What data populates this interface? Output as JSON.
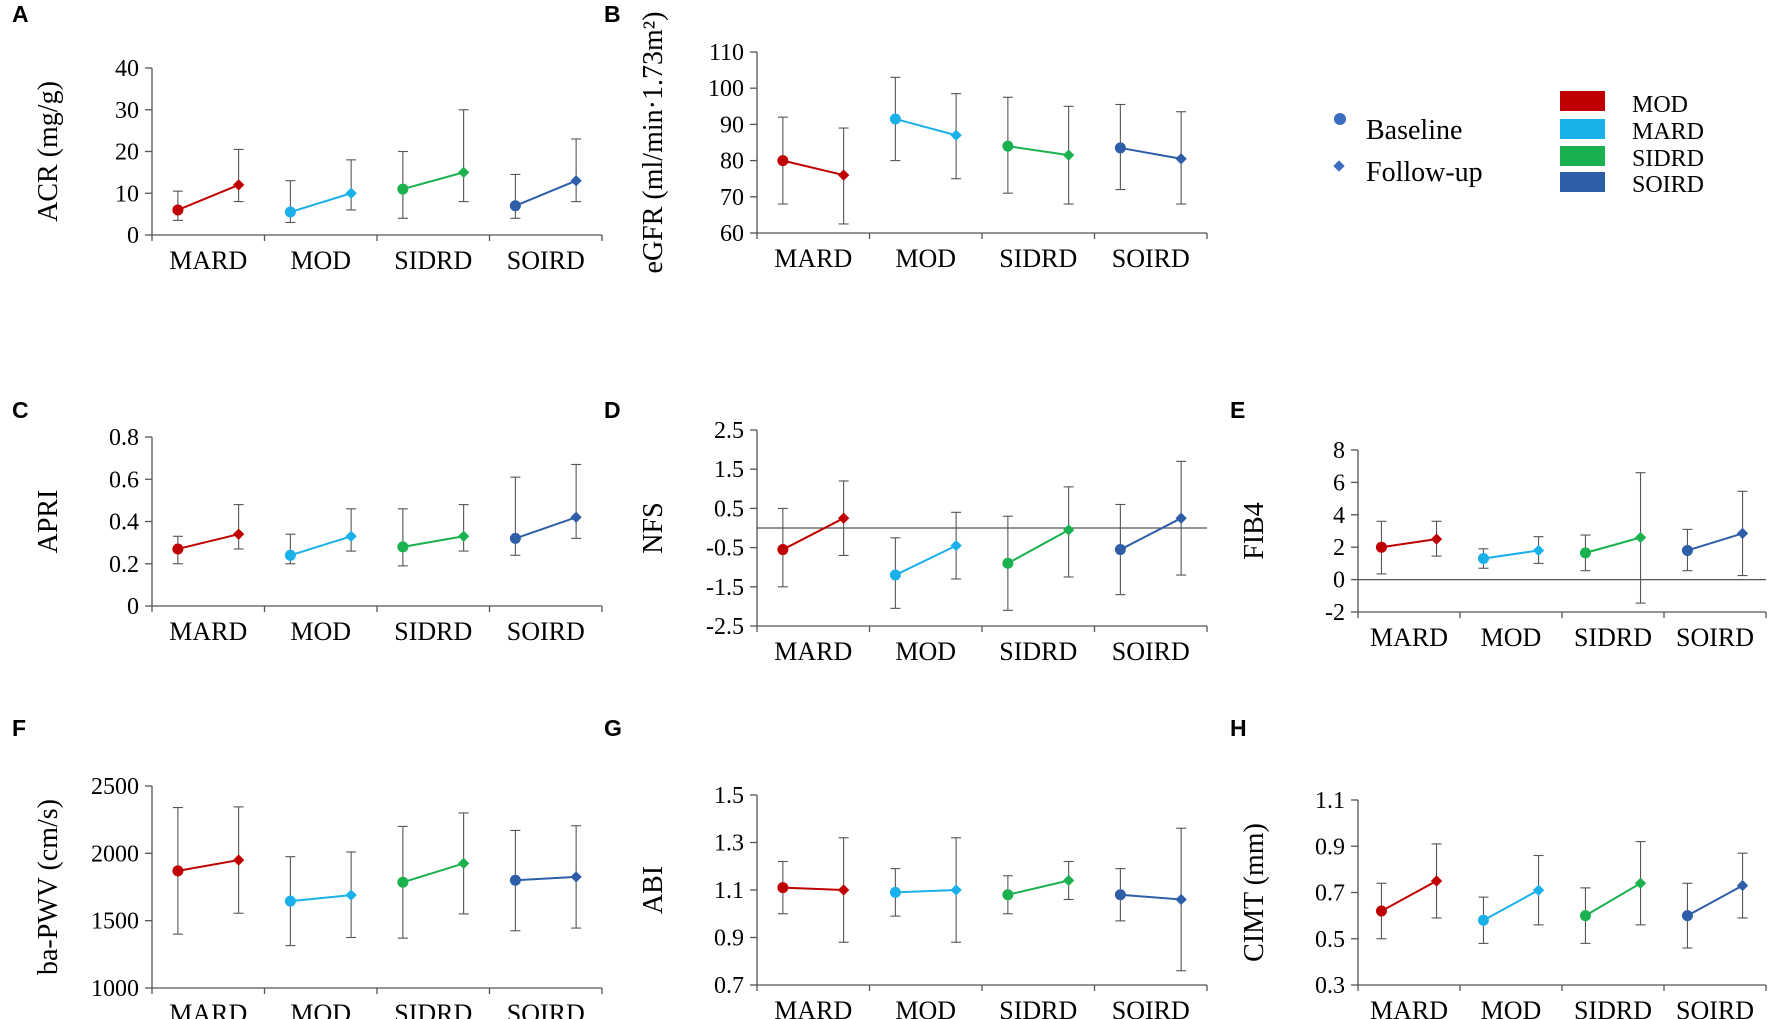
{
  "legend": {
    "markers": [
      {
        "label": "Baseline",
        "shape": "circle",
        "color": "#3a6cc0"
      },
      {
        "label": "Follow-up",
        "shape": "diamond",
        "color": "#3a6cc0"
      }
    ],
    "groups": [
      {
        "label": "MOD",
        "color": "#c00000"
      },
      {
        "label": "MARD",
        "color": "#1ab0ea"
      },
      {
        "label": "SIDRD",
        "color": "#1ab14e"
      },
      {
        "label": "SOIRD",
        "color": "#2e5ea8"
      }
    ]
  },
  "chart_data": [
    {
      "letter": "A",
      "type": "line",
      "ylabel": "ACR (mg/g)",
      "categories": [
        "MARD",
        "MOD",
        "SIDRD",
        "SOIRD"
      ],
      "colors": [
        "#c00000",
        "#1ab0ea",
        "#1ab14e",
        "#2e5ea8"
      ],
      "ylim": [
        0,
        40
      ],
      "yticks": [
        "0",
        "10",
        "20",
        "30",
        "40"
      ],
      "baseline_line": null,
      "baseline": [
        {
          "v": 6,
          "lo": 3.5,
          "hi": 10.5
        },
        {
          "v": 5.5,
          "lo": 3,
          "hi": 13
        },
        {
          "v": 11,
          "lo": 4,
          "hi": 20
        },
        {
          "v": 7,
          "lo": 4,
          "hi": 14.5
        }
      ],
      "followup": [
        {
          "v": 12,
          "lo": 8,
          "hi": 20.5
        },
        {
          "v": 10,
          "lo": 6,
          "hi": 18
        },
        {
          "v": 15,
          "lo": 8,
          "hi": 30
        },
        {
          "v": 13,
          "lo": 8,
          "hi": 23
        }
      ]
    },
    {
      "letter": "B",
      "type": "line",
      "ylabel": "eGFR (ml/min·1.73m²)",
      "categories": [
        "MARD",
        "MOD",
        "SIDRD",
        "SOIRD"
      ],
      "colors": [
        "#c00000",
        "#1ab0ea",
        "#1ab14e",
        "#2e5ea8"
      ],
      "ylim": [
        60,
        110
      ],
      "yticks": [
        "60",
        "70",
        "80",
        "90",
        "100",
        "110"
      ],
      "baseline_line": null,
      "baseline": [
        {
          "v": 80,
          "lo": 68,
          "hi": 92
        },
        {
          "v": 91.5,
          "lo": 80,
          "hi": 103
        },
        {
          "v": 84,
          "lo": 71,
          "hi": 97.5
        },
        {
          "v": 83.5,
          "lo": 72,
          "hi": 95.5
        }
      ],
      "followup": [
        {
          "v": 76,
          "lo": 62.5,
          "hi": 89
        },
        {
          "v": 87,
          "lo": 75,
          "hi": 98.5
        },
        {
          "v": 81.5,
          "lo": 68,
          "hi": 95
        },
        {
          "v": 80.5,
          "lo": 68,
          "hi": 93.5
        }
      ]
    },
    {
      "letter": "C",
      "type": "line",
      "ylabel": "APRI",
      "categories": [
        "MARD",
        "MOD",
        "SIDRD",
        "SOIRD"
      ],
      "colors": [
        "#c00000",
        "#1ab0ea",
        "#1ab14e",
        "#2e5ea8"
      ],
      "ylim": [
        0,
        0.8
      ],
      "yticks": [
        "0",
        "0.2",
        "0.4",
        "0.6",
        "0.8"
      ],
      "baseline_line": null,
      "baseline": [
        {
          "v": 0.27,
          "lo": 0.2,
          "hi": 0.33
        },
        {
          "v": 0.24,
          "lo": 0.2,
          "hi": 0.34
        },
        {
          "v": 0.28,
          "lo": 0.19,
          "hi": 0.46
        },
        {
          "v": 0.32,
          "lo": 0.24,
          "hi": 0.61
        }
      ],
      "followup": [
        {
          "v": 0.34,
          "lo": 0.27,
          "hi": 0.48
        },
        {
          "v": 0.33,
          "lo": 0.26,
          "hi": 0.46
        },
        {
          "v": 0.33,
          "lo": 0.26,
          "hi": 0.48
        },
        {
          "v": 0.42,
          "lo": 0.32,
          "hi": 0.67
        }
      ]
    },
    {
      "letter": "D",
      "type": "line",
      "ylabel": "NFS",
      "categories": [
        "MARD",
        "MOD",
        "SIDRD",
        "SOIRD"
      ],
      "colors": [
        "#c00000",
        "#1ab0ea",
        "#1ab14e",
        "#2e5ea8"
      ],
      "ylim": [
        -2.5,
        2.5
      ],
      "yticks": [
        "-2.5",
        "-1.5",
        "-0.5",
        "0.5",
        "1.5",
        "2.5"
      ],
      "baseline_line": 0,
      "baseline": [
        {
          "v": -0.55,
          "lo": -1.5,
          "hi": 0.5
        },
        {
          "v": -1.2,
          "lo": -2.05,
          "hi": -0.25
        },
        {
          "v": -0.9,
          "lo": -2.1,
          "hi": 0.3
        },
        {
          "v": -0.55,
          "lo": -1.7,
          "hi": 0.6
        }
      ],
      "followup": [
        {
          "v": 0.25,
          "lo": -0.7,
          "hi": 1.2
        },
        {
          "v": -0.45,
          "lo": -1.3,
          "hi": 0.4
        },
        {
          "v": -0.05,
          "lo": -1.25,
          "hi": 1.05
        },
        {
          "v": 0.25,
          "lo": -1.2,
          "hi": 1.7
        }
      ]
    },
    {
      "letter": "E",
      "type": "line",
      "ylabel": "FIB4",
      "categories": [
        "MARD",
        "MOD",
        "SIDRD",
        "SOIRD"
      ],
      "colors": [
        "#c00000",
        "#1ab0ea",
        "#1ab14e",
        "#2e5ea8"
      ],
      "ylim": [
        -2,
        8
      ],
      "yticks": [
        "-2",
        "0",
        "2",
        "4",
        "6",
        "8"
      ],
      "baseline_line": 0,
      "baseline": [
        {
          "v": 2.0,
          "lo": 0.35,
          "hi": 3.6
        },
        {
          "v": 1.3,
          "lo": 0.7,
          "hi": 1.9
        },
        {
          "v": 1.65,
          "lo": 0.55,
          "hi": 2.75
        },
        {
          "v": 1.8,
          "lo": 0.55,
          "hi": 3.1
        }
      ],
      "followup": [
        {
          "v": 2.5,
          "lo": 1.45,
          "hi": 3.6
        },
        {
          "v": 1.8,
          "lo": 1.0,
          "hi": 2.65
        },
        {
          "v": 2.6,
          "lo": -1.45,
          "hi": 6.6
        },
        {
          "v": 2.85,
          "lo": 0.25,
          "hi": 5.45
        }
      ]
    },
    {
      "letter": "F",
      "type": "line",
      "ylabel": "ba-PWV (cm/s)",
      "categories": [
        "MARD",
        "MOD",
        "SIDRD",
        "SOIRD"
      ],
      "colors": [
        "#c00000",
        "#1ab0ea",
        "#1ab14e",
        "#2e5ea8"
      ],
      "ylim": [
        1000,
        2500
      ],
      "yticks": [
        "1000",
        "1500",
        "2000",
        "2500"
      ],
      "baseline_line": null,
      "baseline": [
        {
          "v": 1870,
          "lo": 1400,
          "hi": 2340
        },
        {
          "v": 1645,
          "lo": 1315,
          "hi": 1975
        },
        {
          "v": 1785,
          "lo": 1370,
          "hi": 2200
        },
        {
          "v": 1800,
          "lo": 1425,
          "hi": 2170
        }
      ],
      "followup": [
        {
          "v": 1950,
          "lo": 1555,
          "hi": 2345
        },
        {
          "v": 1690,
          "lo": 1375,
          "hi": 2010
        },
        {
          "v": 1925,
          "lo": 1550,
          "hi": 2300
        },
        {
          "v": 1825,
          "lo": 1445,
          "hi": 2205
        }
      ]
    },
    {
      "letter": "G",
      "type": "line",
      "ylabel": "ABI",
      "categories": [
        "MARD",
        "MOD",
        "SIDRD",
        "SOIRD"
      ],
      "colors": [
        "#c00000",
        "#1ab0ea",
        "#1ab14e",
        "#2e5ea8"
      ],
      "ylim": [
        0.7,
        1.5
      ],
      "yticks": [
        "0.7",
        "0.9",
        "1.1",
        "1.3",
        "1.5"
      ],
      "baseline_line": null,
      "baseline": [
        {
          "v": 1.11,
          "lo": 1.0,
          "hi": 1.22
        },
        {
          "v": 1.09,
          "lo": 0.99,
          "hi": 1.19
        },
        {
          "v": 1.08,
          "lo": 1.0,
          "hi": 1.16
        },
        {
          "v": 1.08,
          "lo": 0.97,
          "hi": 1.19
        }
      ],
      "followup": [
        {
          "v": 1.1,
          "lo": 0.88,
          "hi": 1.32
        },
        {
          "v": 1.1,
          "lo": 0.88,
          "hi": 1.32
        },
        {
          "v": 1.14,
          "lo": 1.06,
          "hi": 1.22
        },
        {
          "v": 1.06,
          "lo": 0.76,
          "hi": 1.36
        }
      ]
    },
    {
      "letter": "H",
      "type": "line",
      "ylabel": "CIMT (mm)",
      "categories": [
        "MARD",
        "MOD",
        "SIDRD",
        "SOIRD"
      ],
      "colors": [
        "#c00000",
        "#1ab0ea",
        "#1ab14e",
        "#2e5ea8"
      ],
      "ylim": [
        0.3,
        1.1
      ],
      "yticks": [
        "0.3",
        "0.5",
        "0.7",
        "0.9",
        "1.1"
      ],
      "baseline_line": null,
      "baseline": [
        {
          "v": 0.62,
          "lo": 0.5,
          "hi": 0.74
        },
        {
          "v": 0.58,
          "lo": 0.48,
          "hi": 0.68
        },
        {
          "v": 0.6,
          "lo": 0.48,
          "hi": 0.72
        },
        {
          "v": 0.6,
          "lo": 0.46,
          "hi": 0.74
        }
      ],
      "followup": [
        {
          "v": 0.75,
          "lo": 0.59,
          "hi": 0.91
        },
        {
          "v": 0.71,
          "lo": 0.56,
          "hi": 0.86
        },
        {
          "v": 0.74,
          "lo": 0.56,
          "hi": 0.92
        },
        {
          "v": 0.73,
          "lo": 0.59,
          "hi": 0.87
        }
      ]
    }
  ]
}
